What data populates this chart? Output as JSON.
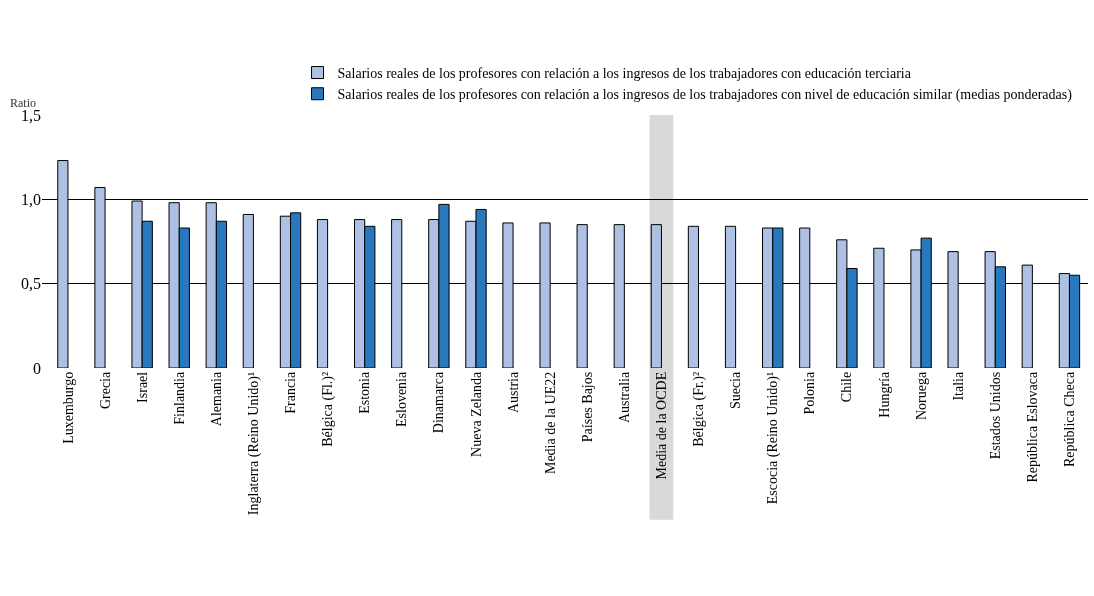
{
  "chart_data": {
    "type": "bar",
    "ylabel": "Ratio",
    "categories": [
      "Luxemburgo",
      "Grecia",
      "Israel",
      "Finlandia",
      "Alemania",
      "Inglaterra (Reino Unido)¹",
      "Francia",
      "Bélgica (Fl.)²",
      "Estonia",
      "Eslovenia",
      "Dinamarca",
      "Nueva Zelanda",
      "Austria",
      "Media de la UE22",
      "Países Bajos",
      "Australia",
      "Media de la OCDE",
      "Bélgica (Fr.)²",
      "Suecia",
      "Escocia (Reino Unido)¹",
      "Polonia",
      "Chile",
      "Hungría",
      "Noruega",
      "Italia",
      "Estados Unidos",
      "República Eslovaca",
      "República Checa"
    ],
    "series": [
      {
        "name": "Salarios reales de los profesores con relación a los ingresos de los trabajadores con educación terciaria",
        "color": "#aec0e3",
        "values": [
          1.23,
          1.07,
          0.99,
          0.98,
          0.98,
          0.91,
          0.9,
          0.88,
          0.88,
          0.88,
          0.88,
          0.87,
          0.86,
          0.86,
          0.85,
          0.85,
          0.85,
          0.84,
          0.84,
          0.83,
          0.83,
          0.76,
          0.71,
          0.7,
          0.69,
          0.69,
          0.61,
          0.56
        ]
      },
      {
        "name": "Salarios reales de los profesores con relación a los ingresos de los trabajadores con nivel de educación similar (medias ponderadas)",
        "color": "#2878bd",
        "values": [
          null,
          null,
          0.87,
          0.83,
          0.87,
          null,
          0.92,
          null,
          0.84,
          null,
          0.97,
          0.94,
          null,
          null,
          null,
          null,
          null,
          null,
          null,
          0.83,
          null,
          0.59,
          null,
          0.77,
          null,
          0.6,
          null,
          0.55
        ]
      }
    ],
    "ylim": [
      0,
      1.5
    ],
    "yticks": [
      0,
      {
        "value": 0.5,
        "label": "0,5"
      },
      {
        "value": 1,
        "label": "1,0"
      },
      {
        "value": 1.5,
        "label": "1,5"
      }
    ],
    "grid": "y",
    "legend": "top",
    "bands": [
      {
        "axis": "x",
        "from": "Media de la OCDE",
        "to": "Media de la OCDE",
        "color": "#d9d9d9"
      }
    ]
  }
}
